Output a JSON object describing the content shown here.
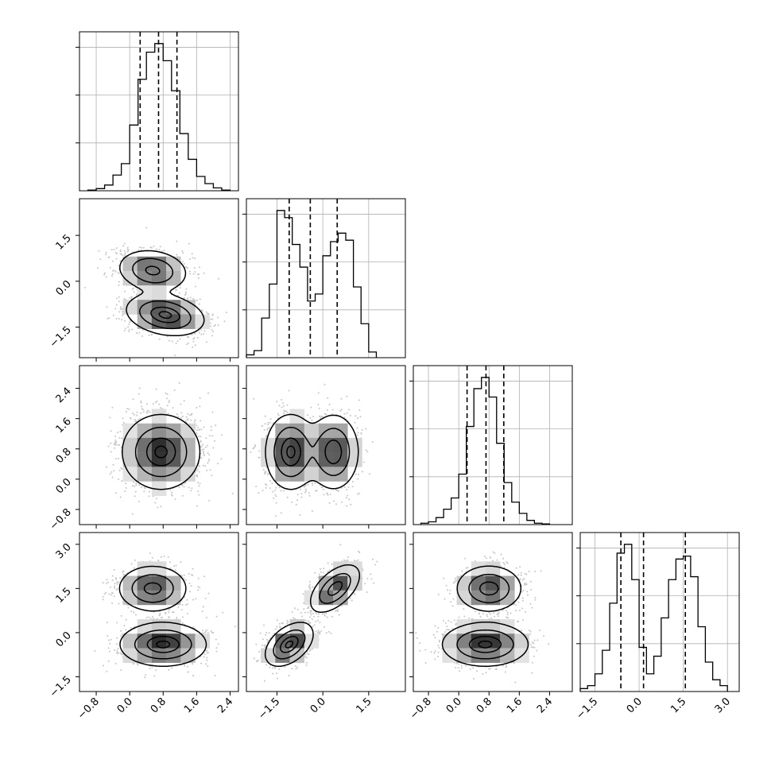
{
  "chart_data": {
    "type": "corner",
    "grid": true,
    "colors": {
      "line": "#000000",
      "grid": "#b0b0b0",
      "points": "#000000",
      "density": "#000000"
    },
    "variables": [
      {
        "xlim": [
          -1.2,
          2.6
        ],
        "ticks": [
          -0.8,
          0.0,
          0.8,
          1.6,
          2.4
        ],
        "tick_labels": [
          "−0.8",
          "0.0",
          "0.8",
          "1.6",
          "2.4"
        ]
      },
      {
        "xlim": [
          -2.5,
          2.7
        ],
        "ticks": [
          -1.5,
          0.0,
          1.5
        ],
        "tick_labels": [
          "−1.5",
          "0.0",
          "1.5"
        ]
      },
      {
        "xlim": [
          -1.2,
          3.0
        ],
        "ticks": [
          -0.8,
          0.0,
          0.8,
          1.6,
          2.4
        ],
        "tick_labels": [
          "−0.8",
          "0.0",
          "0.8",
          "1.6",
          "2.4"
        ]
      },
      {
        "xlim": [
          -2.0,
          3.4
        ],
        "ticks": [
          -1.5,
          0.0,
          1.5,
          3.0
        ],
        "tick_labels": [
          "−1.5",
          "0.0",
          "1.5",
          "3.0"
        ]
      }
    ],
    "histograms": [
      {
        "var": 0,
        "bins": [
          -1.0,
          -0.8,
          -0.6,
          -0.4,
          -0.2,
          0.0,
          0.2,
          0.4,
          0.6,
          0.8,
          1.0,
          1.2,
          1.4,
          1.6,
          1.8,
          2.0,
          2.2,
          2.4
        ],
        "counts": [
          0.5,
          1.5,
          4,
          11,
          19,
          46,
          78,
          97,
          103,
          91,
          70,
          40,
          22,
          10,
          5,
          2,
          0.5
        ],
        "quantiles": [
          0.25,
          0.69,
          1.13
        ]
      },
      {
        "var": 1,
        "bins": [
          -2.5,
          -2.25,
          -2.0,
          -1.75,
          -1.5,
          -1.25,
          -1.0,
          -0.75,
          -0.5,
          -0.25,
          0.0,
          0.25,
          0.5,
          0.75,
          1.0,
          1.25,
          1.5,
          1.75
        ],
        "counts": [
          2,
          5,
          28,
          52,
          104,
          99,
          80,
          64,
          40,
          45,
          72,
          82,
          88,
          83,
          50,
          24,
          4
        ],
        "quantiles": [
          -1.1,
          -0.41,
          0.47
        ]
      },
      {
        "var": 2,
        "bins": [
          -1.0,
          -0.8,
          -0.6,
          -0.4,
          -0.2,
          0.0,
          0.2,
          0.4,
          0.6,
          0.8,
          1.0,
          1.2,
          1.4,
          1.6,
          1.8,
          2.0,
          2.2,
          2.4
        ],
        "counts": [
          1,
          2,
          5,
          11,
          19,
          36,
          70,
          97,
          105,
          91,
          58,
          30,
          16,
          8,
          3,
          1,
          0.5
        ],
        "quantiles": [
          0.22,
          0.72,
          1.19
        ]
      },
      {
        "var": 3,
        "bins": [
          -2.0,
          -1.75,
          -1.5,
          -1.25,
          -1.0,
          -0.75,
          -0.5,
          -0.25,
          0.0,
          0.25,
          0.5,
          0.75,
          1.0,
          1.25,
          1.5,
          1.75,
          2.0,
          2.25,
          2.5,
          2.75,
          3.0
        ],
        "counts": [
          1,
          2,
          6,
          14,
          30,
          47,
          50,
          38,
          15,
          6,
          12,
          25,
          38,
          45,
          46,
          39,
          22,
          10,
          4,
          2
        ],
        "quantiles": [
          -0.62,
          0.15,
          1.57
        ]
      }
    ],
    "scatter_panels": [
      {
        "row": 1,
        "col": 0,
        "modes": [
          {
            "mx": 0.55,
            "my": 0.35,
            "sx": 0.4,
            "sy": 0.33,
            "rho": -0.15,
            "w": 0.45
          },
          {
            "mx": 0.85,
            "my": -1.1,
            "sx": 0.45,
            "sy": 0.33,
            "rho": -0.25,
            "w": 0.55
          }
        ]
      },
      {
        "row": 2,
        "col": 0,
        "modes": [
          {
            "mx": 0.75,
            "my": 0.72,
            "sx": 0.45,
            "sy": 0.48,
            "rho": 0.0,
            "w": 1.0
          }
        ]
      },
      {
        "row": 2,
        "col": 1,
        "modes": [
          {
            "mx": -1.05,
            "my": 0.72,
            "sx": 0.4,
            "sy": 0.48,
            "rho": 0.0,
            "w": 0.52
          },
          {
            "mx": 0.35,
            "my": 0.72,
            "sx": 0.4,
            "sy": 0.48,
            "rho": 0.0,
            "w": 0.48
          }
        ]
      },
      {
        "row": 3,
        "col": 0,
        "modes": [
          {
            "mx": 0.55,
            "my": 1.5,
            "sx": 0.4,
            "sy": 0.38,
            "rho": 0.0,
            "w": 0.46
          },
          {
            "mx": 0.8,
            "my": -0.4,
            "sx": 0.5,
            "sy": 0.36,
            "rho": 0.0,
            "w": 0.54
          }
        ]
      },
      {
        "row": 3,
        "col": 1,
        "modes": [
          {
            "mx": 0.4,
            "my": 1.5,
            "sx": 0.4,
            "sy": 0.4,
            "rho": 0.55,
            "w": 0.47
          },
          {
            "mx": -1.1,
            "my": -0.4,
            "sx": 0.38,
            "sy": 0.36,
            "rho": 0.45,
            "w": 0.53
          }
        ]
      },
      {
        "row": 3,
        "col": 2,
        "modes": [
          {
            "mx": 0.8,
            "my": 1.5,
            "sx": 0.42,
            "sy": 0.38,
            "rho": 0.0,
            "w": 0.47
          },
          {
            "mx": 0.7,
            "my": -0.4,
            "sx": 0.55,
            "sy": 0.36,
            "rho": 0.0,
            "w": 0.53
          }
        ]
      }
    ],
    "contour_levels": [
      0.12,
      0.4,
      0.75,
      0.95
    ]
  }
}
